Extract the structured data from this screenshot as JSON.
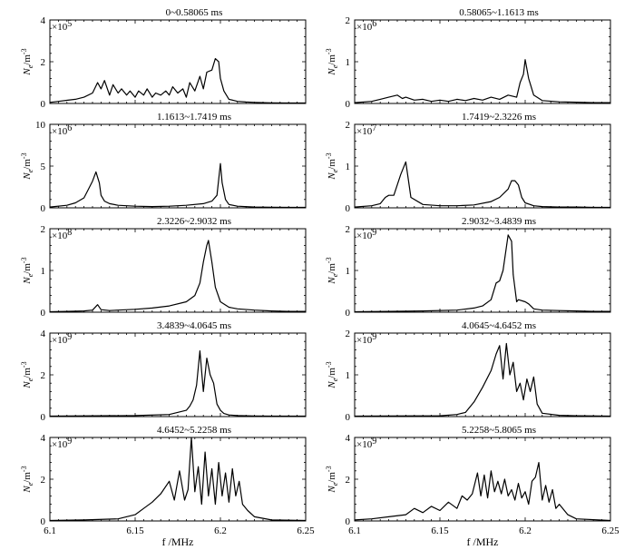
{
  "chart_data": [
    {
      "type": "line",
      "title": "0~0.58065 ms",
      "multiplier": "×10",
      "exponent": "5",
      "ylabel": "N",
      "ysub": "e",
      "yunit": "/m",
      "ysup": "-3",
      "ylim": [
        0,
        4
      ],
      "yticks": [
        "0",
        "2",
        "4"
      ],
      "xlim": [
        6.1,
        6.25
      ],
      "xticks": [],
      "xlabel": "",
      "x": [
        6.1,
        6.105,
        6.11,
        6.115,
        6.12,
        6.125,
        6.128,
        6.13,
        6.132,
        6.135,
        6.137,
        6.14,
        6.142,
        6.145,
        6.147,
        6.15,
        6.152,
        6.155,
        6.157,
        6.16,
        6.162,
        6.165,
        6.168,
        6.17,
        6.172,
        6.175,
        6.178,
        6.18,
        6.182,
        6.185,
        6.188,
        6.19,
        6.192,
        6.195,
        6.197,
        6.199,
        6.2,
        6.202,
        6.205,
        6.21,
        6.215,
        6.22,
        6.225,
        6.23,
        6.24,
        6.25
      ],
      "y": [
        0.05,
        0.1,
        0.15,
        0.2,
        0.3,
        0.5,
        1.0,
        0.7,
        1.1,
        0.4,
        0.9,
        0.5,
        0.7,
        0.4,
        0.6,
        0.3,
        0.6,
        0.4,
        0.7,
        0.3,
        0.5,
        0.4,
        0.6,
        0.4,
        0.8,
        0.5,
        0.7,
        0.3,
        1.0,
        0.6,
        1.3,
        0.7,
        1.5,
        1.6,
        2.15,
        2.0,
        1.2,
        0.6,
        0.2,
        0.1,
        0.07,
        0.05,
        0.04,
        0.03,
        0.02,
        0.02
      ]
    },
    {
      "type": "line",
      "title": "0.58065~1.1613 ms",
      "multiplier": "×10",
      "exponent": "6",
      "ylabel": "N",
      "ysub": "e",
      "yunit": "/m",
      "ysup": "-3",
      "ylim": [
        0,
        2
      ],
      "yticks": [
        "0",
        "1",
        "2"
      ],
      "xlim": [
        6.1,
        6.25
      ],
      "xticks": [],
      "xlabel": "",
      "x": [
        6.1,
        6.11,
        6.115,
        6.12,
        6.125,
        6.128,
        6.13,
        6.135,
        6.14,
        6.145,
        6.15,
        6.155,
        6.16,
        6.165,
        6.17,
        6.175,
        6.18,
        6.185,
        6.19,
        6.195,
        6.197,
        6.199,
        6.2,
        6.202,
        6.205,
        6.21,
        6.22,
        6.23,
        6.24,
        6.25
      ],
      "y": [
        0.02,
        0.05,
        0.1,
        0.15,
        0.2,
        0.12,
        0.15,
        0.08,
        0.1,
        0.05,
        0.08,
        0.05,
        0.1,
        0.07,
        0.12,
        0.08,
        0.15,
        0.1,
        0.2,
        0.15,
        0.5,
        0.7,
        1.05,
        0.6,
        0.2,
        0.07,
        0.04,
        0.03,
        0.02,
        0.02
      ]
    },
    {
      "type": "line",
      "title": "1.1613~1.7419 ms",
      "multiplier": "×10",
      "exponent": "6",
      "ylabel": "N",
      "ysub": "e",
      "yunit": "/m",
      "ysup": "-3",
      "ylim": [
        0,
        10
      ],
      "yticks": [
        "0",
        "5",
        "10"
      ],
      "xlim": [
        6.1,
        6.25
      ],
      "xticks": [],
      "xlabel": "",
      "x": [
        6.1,
        6.11,
        6.115,
        6.12,
        6.122,
        6.125,
        6.127,
        6.129,
        6.13,
        6.132,
        6.135,
        6.14,
        6.15,
        6.16,
        6.17,
        6.18,
        6.19,
        6.195,
        6.198,
        6.2,
        6.201,
        6.203,
        6.205,
        6.21,
        6.22,
        6.23,
        6.24,
        6.25
      ],
      "y": [
        0.1,
        0.3,
        0.6,
        1.2,
        2.0,
        3.2,
        4.3,
        3.0,
        1.5,
        0.8,
        0.5,
        0.3,
        0.2,
        0.15,
        0.2,
        0.3,
        0.5,
        0.8,
        1.5,
        5.3,
        3.0,
        1.0,
        0.4,
        0.2,
        0.1,
        0.08,
        0.05,
        0.05
      ]
    },
    {
      "type": "line",
      "title": "1.7419~2.3226 ms",
      "multiplier": "×10",
      "exponent": "7",
      "ylabel": "N",
      "ysub": "e",
      "yunit": "/m",
      "ysup": "-3",
      "ylim": [
        0,
        2
      ],
      "yticks": [
        "0",
        "1",
        "2"
      ],
      "xlim": [
        6.1,
        6.25
      ],
      "xticks": [],
      "xlabel": "",
      "x": [
        6.1,
        6.11,
        6.115,
        6.118,
        6.12,
        6.123,
        6.125,
        6.127,
        6.13,
        6.133,
        6.14,
        6.15,
        6.16,
        6.17,
        6.18,
        6.185,
        6.19,
        6.192,
        6.194,
        6.196,
        6.198,
        6.2,
        6.205,
        6.21,
        6.22,
        6.23,
        6.24,
        6.25
      ],
      "y": [
        0.02,
        0.05,
        0.1,
        0.25,
        0.3,
        0.3,
        0.55,
        0.8,
        1.1,
        0.25,
        0.08,
        0.05,
        0.05,
        0.07,
        0.15,
        0.25,
        0.45,
        0.65,
        0.65,
        0.55,
        0.25,
        0.12,
        0.05,
        0.03,
        0.02,
        0.02,
        0.01,
        0.01
      ]
    },
    {
      "type": "line",
      "title": "2.3226~2.9032 ms",
      "multiplier": "×10",
      "exponent": "8",
      "ylabel": "N",
      "ysub": "e",
      "yunit": "/m",
      "ysup": "-3",
      "ylim": [
        0,
        2
      ],
      "yticks": [
        "0",
        "1",
        "2"
      ],
      "xlim": [
        6.1,
        6.25
      ],
      "xticks": [],
      "xlabel": "",
      "x": [
        6.1,
        6.11,
        6.12,
        6.125,
        6.128,
        6.13,
        6.135,
        6.14,
        6.15,
        6.16,
        6.17,
        6.18,
        6.185,
        6.188,
        6.19,
        6.192,
        6.193,
        6.195,
        6.197,
        6.2,
        6.205,
        6.21,
        6.22,
        6.23,
        6.24,
        6.25
      ],
      "y": [
        0.01,
        0.02,
        0.03,
        0.05,
        0.18,
        0.06,
        0.04,
        0.05,
        0.07,
        0.1,
        0.15,
        0.25,
        0.4,
        0.7,
        1.2,
        1.6,
        1.72,
        1.2,
        0.6,
        0.25,
        0.12,
        0.08,
        0.05,
        0.03,
        0.02,
        0.02
      ]
    },
    {
      "type": "line",
      "title": "2.9032~3.4839 ms",
      "multiplier": "×10",
      "exponent": "9",
      "ylabel": "N",
      "ysub": "e",
      "yunit": "/m",
      "ysup": "-3",
      "ylim": [
        0,
        2
      ],
      "yticks": [
        "0",
        "1",
        "2"
      ],
      "xlim": [
        6.1,
        6.25
      ],
      "xticks": [],
      "xlabel": "",
      "x": [
        6.1,
        6.12,
        6.14,
        6.16,
        6.17,
        6.175,
        6.18,
        6.183,
        6.185,
        6.187,
        6.19,
        6.192,
        6.193,
        6.195,
        6.196,
        6.2,
        6.202,
        6.205,
        6.21,
        6.22,
        6.23,
        6.24,
        6.25
      ],
      "y": [
        0.01,
        0.02,
        0.03,
        0.05,
        0.1,
        0.15,
        0.3,
        0.7,
        0.75,
        1.0,
        1.85,
        1.7,
        0.9,
        0.25,
        0.3,
        0.25,
        0.2,
        0.08,
        0.05,
        0.04,
        0.03,
        0.02,
        0.02
      ]
    },
    {
      "type": "line",
      "title": "3.4839~4.0645 ms",
      "multiplier": "×10",
      "exponent": "9",
      "ylabel": "N",
      "ysub": "e",
      "yunit": "/m",
      "ysup": "-3",
      "ylim": [
        0,
        4
      ],
      "yticks": [
        "0",
        "2",
        "4"
      ],
      "xlim": [
        6.1,
        6.25
      ],
      "xticks": [],
      "xlabel": "",
      "x": [
        6.1,
        6.15,
        6.17,
        6.18,
        6.182,
        6.184,
        6.186,
        6.188,
        6.19,
        6.192,
        6.194,
        6.196,
        6.198,
        6.2,
        6.202,
        6.205,
        6.21,
        6.22,
        6.23,
        6.25
      ],
      "y": [
        0.02,
        0.05,
        0.1,
        0.3,
        0.5,
        0.8,
        1.5,
        3.15,
        1.2,
        2.8,
        2.0,
        1.6,
        0.6,
        0.3,
        0.15,
        0.08,
        0.05,
        0.03,
        0.02,
        0.02
      ]
    },
    {
      "type": "line",
      "title": "4.0645~4.6452 ms",
      "multiplier": "×10",
      "exponent": "9",
      "ylabel": "N",
      "ysub": "e",
      "yunit": "/m",
      "ysup": "-3",
      "ylim": [
        0,
        2
      ],
      "yticks": [
        "0",
        "1",
        "2"
      ],
      "xlim": [
        6.1,
        6.25
      ],
      "xticks": [],
      "xlabel": "",
      "x": [
        6.1,
        6.15,
        6.16,
        6.165,
        6.17,
        6.175,
        6.18,
        6.183,
        6.185,
        6.187,
        6.189,
        6.191,
        6.193,
        6.195,
        6.197,
        6.199,
        6.201,
        6.203,
        6.205,
        6.207,
        6.21,
        6.22,
        6.23,
        6.25
      ],
      "y": [
        0.01,
        0.02,
        0.05,
        0.1,
        0.35,
        0.7,
        1.1,
        1.5,
        1.7,
        0.9,
        1.75,
        1.0,
        1.3,
        0.6,
        0.8,
        0.4,
        0.9,
        0.6,
        0.95,
        0.3,
        0.08,
        0.03,
        0.02,
        0.01
      ]
    },
    {
      "type": "line",
      "title": "4.6452~5.2258 ms",
      "multiplier": "×10",
      "exponent": "9",
      "ylabel": "N",
      "ysub": "e",
      "yunit": "/m",
      "ysup": "-3",
      "ylim": [
        0,
        4
      ],
      "yticks": [
        "0",
        "2",
        "4"
      ],
      "xlim": [
        6.1,
        6.25
      ],
      "xticks": [
        "6.1",
        "6.15",
        "6.2",
        "6.25"
      ],
      "xlabel": "f /MHz",
      "x": [
        6.1,
        6.12,
        6.14,
        6.15,
        6.155,
        6.16,
        6.165,
        6.17,
        6.173,
        6.176,
        6.179,
        6.181,
        6.183,
        6.185,
        6.187,
        6.189,
        6.191,
        6.193,
        6.195,
        6.197,
        6.199,
        6.201,
        6.203,
        6.205,
        6.207,
        6.209,
        6.211,
        6.213,
        6.216,
        6.22,
        6.23,
        6.25
      ],
      "y": [
        0.02,
        0.05,
        0.1,
        0.3,
        0.6,
        0.9,
        1.3,
        1.9,
        1.0,
        2.4,
        1.0,
        1.5,
        4.1,
        1.4,
        2.6,
        0.8,
        3.3,
        1.2,
        2.5,
        0.8,
        2.8,
        1.2,
        2.3,
        0.9,
        2.5,
        1.2,
        1.9,
        0.8,
        0.5,
        0.2,
        0.05,
        0.02
      ]
    },
    {
      "type": "line",
      "title": "5.2258~5.8065 ms",
      "multiplier": "×10",
      "exponent": "9",
      "ylabel": "N",
      "ysub": "e",
      "yunit": "/m",
      "ysup": "-3",
      "ylim": [
        0,
        4
      ],
      "yticks": [
        "0",
        "2",
        "4"
      ],
      "xlim": [
        6.1,
        6.25
      ],
      "xticks": [
        "6.1",
        "6.15",
        "6.2",
        "6.25"
      ],
      "xlabel": "f /MHz",
      "x": [
        6.1,
        6.11,
        6.12,
        6.13,
        6.135,
        6.14,
        6.145,
        6.15,
        6.155,
        6.16,
        6.163,
        6.166,
        6.169,
        6.172,
        6.174,
        6.176,
        6.178,
        6.18,
        6.182,
        6.184,
        6.186,
        6.188,
        6.19,
        6.192,
        6.194,
        6.196,
        6.198,
        6.2,
        6.202,
        6.204,
        6.206,
        6.208,
        6.21,
        6.212,
        6.214,
        6.216,
        6.218,
        6.22,
        6.225,
        6.23,
        6.25
      ],
      "y": [
        0.05,
        0.1,
        0.2,
        0.3,
        0.6,
        0.4,
        0.7,
        0.5,
        0.9,
        0.6,
        1.2,
        1.0,
        1.3,
        2.3,
        1.2,
        2.2,
        1.1,
        2.4,
        1.4,
        1.9,
        1.3,
        2.0,
        1.2,
        1.5,
        1.0,
        1.8,
        1.1,
        1.4,
        0.8,
        1.9,
        2.1,
        2.8,
        1.0,
        1.7,
        0.9,
        1.5,
        0.6,
        0.8,
        0.3,
        0.1,
        0.02
      ]
    }
  ]
}
